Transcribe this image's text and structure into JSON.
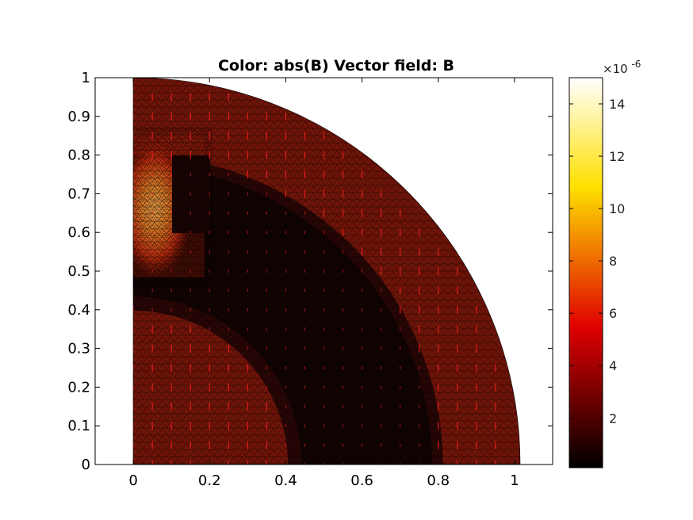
{
  "chart_data": {
    "type": "heatmap",
    "title": "Color: abs(B)  Vector field: B",
    "xlabel": "",
    "ylabel": "",
    "xlim": [
      -0.1,
      1.1
    ],
    "ylim": [
      0,
      1
    ],
    "x_ticks": [
      "0",
      "0.2",
      "0.4",
      "0.6",
      "0.8",
      "1"
    ],
    "x_tick_values": [
      0,
      0.2,
      0.4,
      0.6,
      0.8,
      1
    ],
    "y_ticks": [
      "0",
      "0.1",
      "0.2",
      "0.3",
      "0.4",
      "0.5",
      "0.6",
      "0.7",
      "0.8",
      "0.9",
      "1"
    ],
    "y_tick_values": [
      0,
      0.1,
      0.2,
      0.3,
      0.4,
      0.5,
      0.6,
      0.7,
      0.8,
      0.9,
      1
    ],
    "grid": false,
    "domain": {
      "shape": "quarter-disk",
      "outer_radius": 1.0,
      "inner_dark_ring": [
        0.4,
        0.8
      ],
      "magnet_rect": {
        "x": [
          0.1,
          0.2
        ],
        "y": [
          0.6,
          0.8
        ]
      }
    },
    "colormap": "hot",
    "colorbar": {
      "range": [
        0.1,
        15
      ],
      "ticks": [
        "2",
        "4",
        "6",
        "8",
        "10",
        "12",
        "14"
      ],
      "tick_values": [
        2,
        4,
        6,
        8,
        10,
        12,
        14
      ],
      "exponent_label": "×10",
      "exponent_value": "-6"
    },
    "mesh": "triangular",
    "vector_color": "#ff2020"
  }
}
